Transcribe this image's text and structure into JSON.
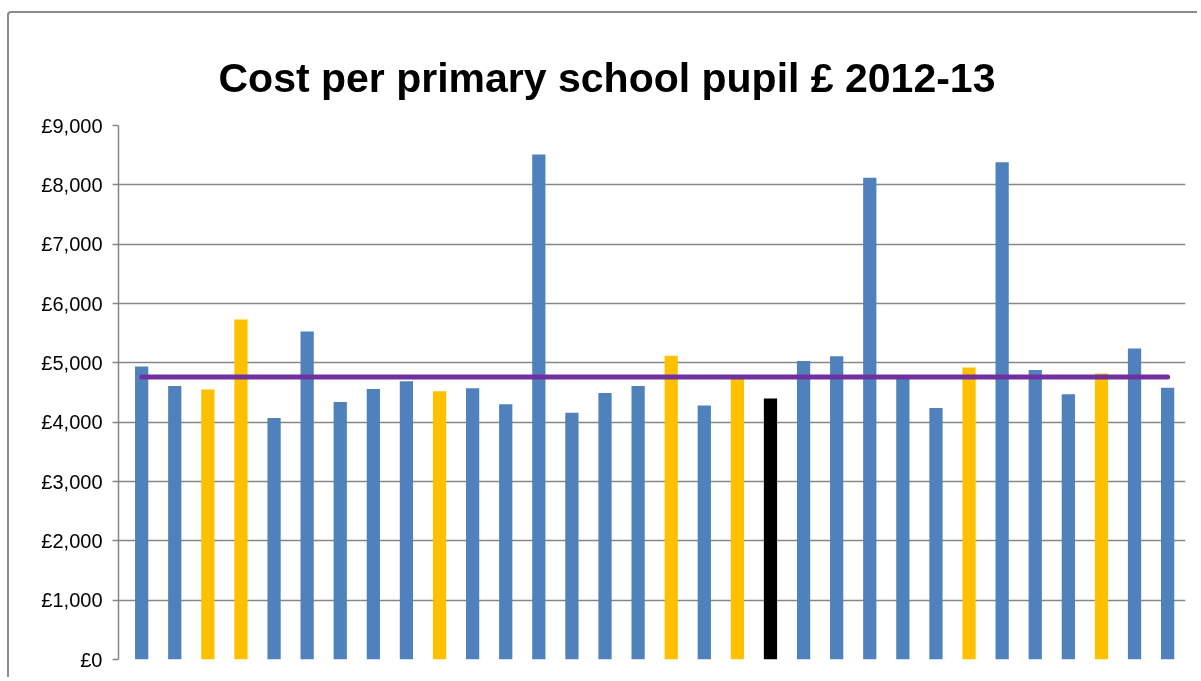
{
  "chart_data": {
    "type": "bar",
    "title": "Cost per primary school pupil £ 2012-13",
    "categories": [
      null,
      null,
      null,
      null,
      null,
      null,
      null,
      null,
      null,
      null,
      null,
      null,
      null,
      null,
      null,
      null,
      null,
      null,
      null,
      null,
      null,
      null,
      null,
      null,
      null,
      null,
      null,
      null,
      null,
      null,
      null,
      null
    ],
    "values": [
      4940,
      4610,
      4550,
      5730,
      4070,
      5530,
      4340,
      4560,
      4690,
      4520,
      4570,
      4300,
      8510,
      4160,
      4490,
      4610,
      5120,
      4280,
      4730,
      4400,
      5030,
      5110,
      8120,
      4740,
      4240,
      4920,
      8380,
      4880,
      4470,
      4820,
      5240,
      4580
    ],
    "colors": [
      "#4f81bd",
      "#4f81bd",
      "#ffc000",
      "#ffc000",
      "#4f81bd",
      "#4f81bd",
      "#4f81bd",
      "#4f81bd",
      "#4f81bd",
      "#ffc000",
      "#4f81bd",
      "#4f81bd",
      "#4f81bd",
      "#4f81bd",
      "#4f81bd",
      "#4f81bd",
      "#ffc000",
      "#4f81bd",
      "#ffc000",
      "#000000",
      "#4f81bd",
      "#4f81bd",
      "#4f81bd",
      "#4f81bd",
      "#4f81bd",
      "#ffc000",
      "#4f81bd",
      "#4f81bd",
      "#4f81bd",
      "#ffc000",
      "#4f81bd",
      "#4f81bd"
    ],
    "ylim": [
      0,
      9000
    ],
    "yticks": [
      {
        "value": 0,
        "label": "£0"
      },
      {
        "value": 1000,
        "label": "£1,000"
      },
      {
        "value": 2000,
        "label": "£2,000"
      },
      {
        "value": 3000,
        "label": "£3,000"
      },
      {
        "value": 4000,
        "label": "£4,000"
      },
      {
        "value": 5000,
        "label": "£5,000"
      },
      {
        "value": 6000,
        "label": "£6,000"
      },
      {
        "value": 7000,
        "label": "£7,000"
      },
      {
        "value": 8000,
        "label": "£8,000"
      },
      {
        "value": 9000,
        "label": "£9,000"
      }
    ],
    "grid": "y",
    "tick_labels": "y",
    "ref_lines": [
      {
        "axis": "y",
        "value": 4760,
        "color": "#7030a0"
      }
    ]
  }
}
